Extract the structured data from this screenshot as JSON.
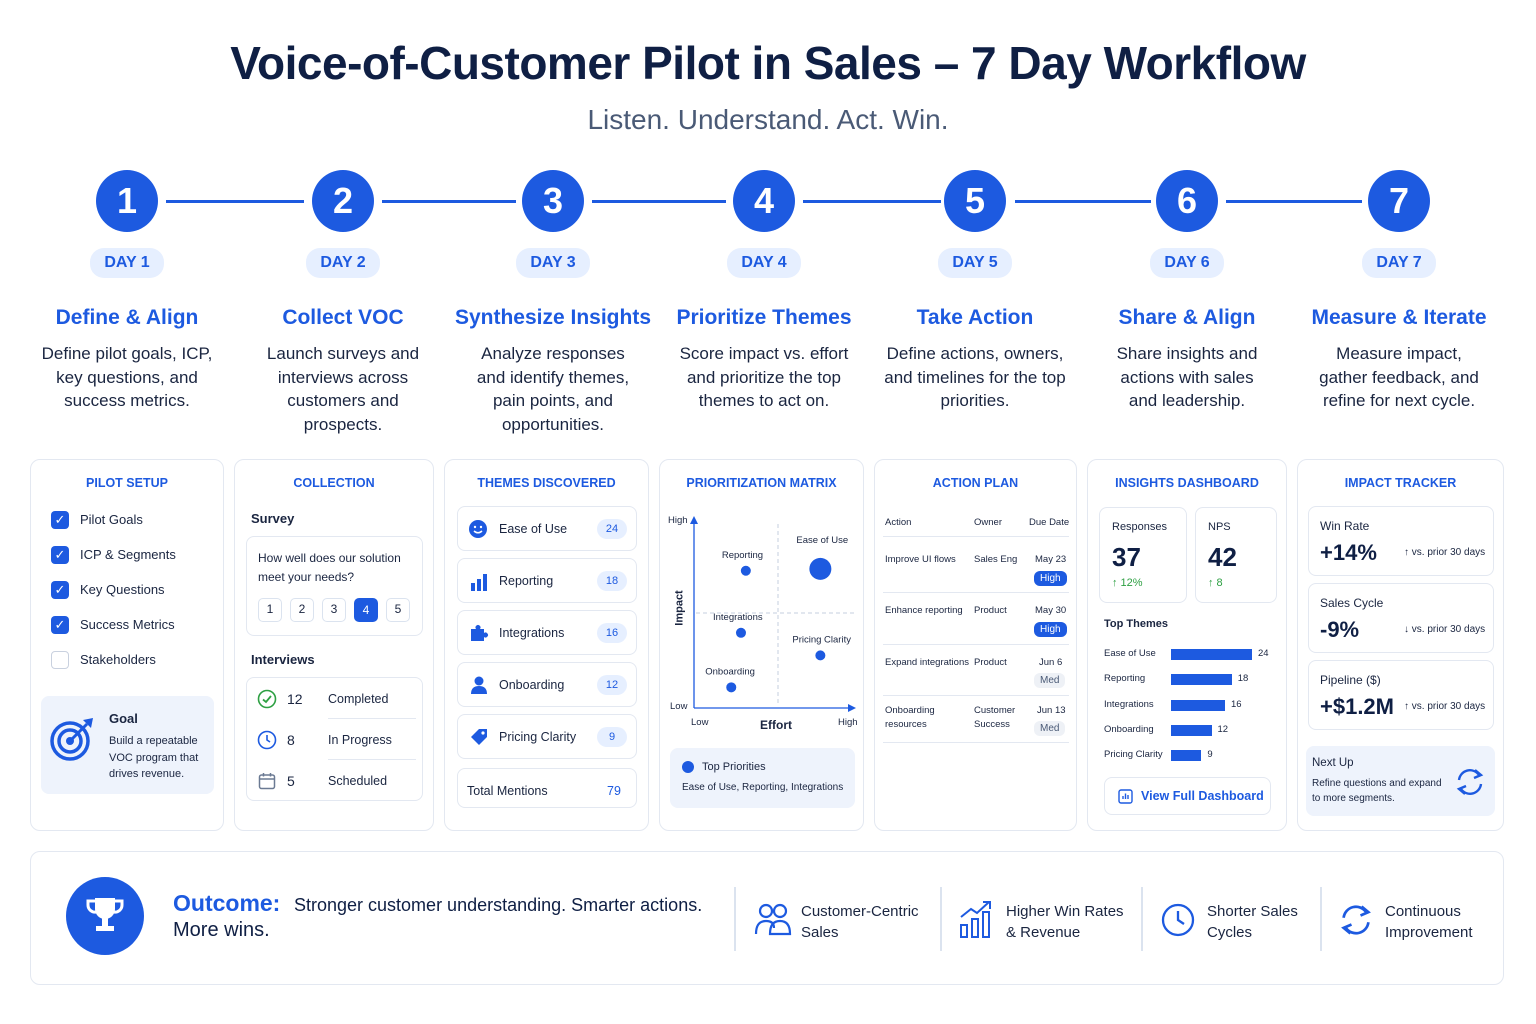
{
  "header": {
    "title": "Voice-of-Customer Pilot in Sales – 7 Day Workflow",
    "subtitle": "Listen. Understand. Act. Win."
  },
  "steps": [
    {
      "num": "1",
      "day": "DAY 1",
      "title": "Define & Align",
      "desc": "Define pilot goals, ICP, key questions, and success metrics."
    },
    {
      "num": "2",
      "day": "DAY 2",
      "title": "Collect VOC",
      "desc": "Launch surveys and interviews across customers and prospects."
    },
    {
      "num": "3",
      "day": "DAY 3",
      "title": "Synthesize Insights",
      "desc": "Analyze responses and identify themes, pain points, and opportunities."
    },
    {
      "num": "4",
      "day": "DAY 4",
      "title": "Prioritize Themes",
      "desc": "Score impact vs. effort and prioritize the top themes to act on."
    },
    {
      "num": "5",
      "day": "DAY 5",
      "title": "Take Action",
      "desc": "Define actions, owners, and timelines for the top priorities."
    },
    {
      "num": "6",
      "day": "DAY 6",
      "title": "Share & Align",
      "desc": "Share insights and actions with sales and leadership."
    },
    {
      "num": "7",
      "day": "DAY 7",
      "title": "Measure & Iterate",
      "desc": "Measure impact, gather feedback, and refine for next cycle."
    }
  ],
  "setup": {
    "title": "PILOT SETUP",
    "items": [
      {
        "label": "Pilot Goals",
        "checked": true
      },
      {
        "label": "ICP & Segments",
        "checked": true
      },
      {
        "label": "Key Questions",
        "checked": true
      },
      {
        "label": "Success Metrics",
        "checked": true
      },
      {
        "label": "Stakeholders",
        "checked": false
      }
    ],
    "goal_title": "Goal",
    "goal_text": "Build a repeatable VOC program that drives revenue.",
    "icon": "target-icon"
  },
  "collection": {
    "title": "COLLECTION",
    "survey_label": "Survey",
    "question": "How well does our solution meet your needs?",
    "scale": [
      "1",
      "2",
      "3",
      "4",
      "5"
    ],
    "selected": "4",
    "interviews_label": "Interviews",
    "interviews": [
      {
        "count": "12",
        "label": "Completed",
        "icon": "check-circle-icon"
      },
      {
        "count": "8",
        "label": "In Progress",
        "icon": "clock-icon"
      },
      {
        "count": "5",
        "label": "Scheduled",
        "icon": "calendar-icon"
      }
    ]
  },
  "themes": {
    "title": "THEMES DISCOVERED",
    "items": [
      {
        "label": "Ease of Use",
        "count": "24",
        "icon": "smile-icon"
      },
      {
        "label": "Reporting",
        "count": "18",
        "icon": "bar-chart-icon"
      },
      {
        "label": "Integrations",
        "count": "16",
        "icon": "puzzle-icon"
      },
      {
        "label": "Onboarding",
        "count": "12",
        "icon": "user-icon"
      },
      {
        "label": "Pricing Clarity",
        "count": "9",
        "icon": "tag-icon"
      }
    ],
    "total_label": "Total Mentions",
    "total": "79"
  },
  "matrix": {
    "title": "PRIORITIZATION MATRIX",
    "y_high": "High",
    "y_low": "Low",
    "y_label": "Impact",
    "x_low": "Low",
    "x_high": "High",
    "x_label": "Effort",
    "points": [
      {
        "label": "Reporting",
        "effort": 0.32,
        "impact": 0.73
      },
      {
        "label": "Ease of Use",
        "effort": 0.78,
        "impact": 0.74
      },
      {
        "label": "Integrations",
        "effort": 0.29,
        "impact": 0.4
      },
      {
        "label": "Pricing Clarity",
        "effort": 0.78,
        "impact": 0.28
      },
      {
        "label": "Onboarding",
        "effort": 0.23,
        "impact": 0.11
      }
    ],
    "legend_title": "Top Priorities",
    "legend_text": "Ease of Use, Reporting, Integrations"
  },
  "actions": {
    "title": "ACTION PLAN",
    "headers": [
      "Action",
      "Owner",
      "Due Date"
    ],
    "rows": [
      {
        "action": "Improve UI flows",
        "owner": "Sales Eng",
        "due": "May 23",
        "priority": "High"
      },
      {
        "action": "Enhance reporting",
        "owner": "Product",
        "due": "May 30",
        "priority": "High"
      },
      {
        "action": "Expand integrations",
        "owner": "Product",
        "due": "Jun 6",
        "priority": "Med"
      },
      {
        "action": "Onboarding resources",
        "owner": "Customer Success",
        "due": "Jun 13",
        "priority": "Med"
      }
    ]
  },
  "dashboard": {
    "title": "INSIGHTS DASHBOARD",
    "kpis": [
      {
        "label": "Responses",
        "value": "37",
        "delta": "↑ 12%"
      },
      {
        "label": "NPS",
        "value": "42",
        "delta": "↑ 8"
      }
    ],
    "top_themes_label": "Top Themes",
    "bars": [
      {
        "label": "Ease of Use",
        "value": 24
      },
      {
        "label": "Reporting",
        "value": 18
      },
      {
        "label": "Integrations",
        "value": 16
      },
      {
        "label": "Onboarding",
        "value": 12
      },
      {
        "label": "Pricing Clarity",
        "value": 9
      }
    ],
    "button": "View Full Dashboard"
  },
  "impact": {
    "title": "IMPACT TRACKER",
    "metrics": [
      {
        "label": "Win Rate",
        "value": "+14%",
        "note": "↑ vs. prior 30 days"
      },
      {
        "label": "Sales Cycle",
        "value": "-9%",
        "note": "↓ vs. prior 30 days"
      },
      {
        "label": "Pipeline ($)",
        "value": "+$1.2M",
        "note": "↑ vs. prior 30 days"
      }
    ],
    "next_title": "Next Up",
    "next_text": "Refine questions and expand to more segments."
  },
  "outcome": {
    "label": "Outcome:",
    "text1": "Stronger customer understanding. Smarter actions.",
    "text2": "More wins.",
    "benefits": [
      {
        "text": "Customer-Centric Sales",
        "icon": "users-icon"
      },
      {
        "text": "Higher Win Rates & Revenue",
        "icon": "growth-chart-icon"
      },
      {
        "text": "Shorter Sales Cycles",
        "icon": "clock-icon"
      },
      {
        "text": "Continuous Improvement",
        "icon": "refresh-icon"
      }
    ]
  },
  "colors": {
    "accent": "#1d5ae0",
    "light": "#e6efff",
    "dark": "#0f1f44"
  }
}
